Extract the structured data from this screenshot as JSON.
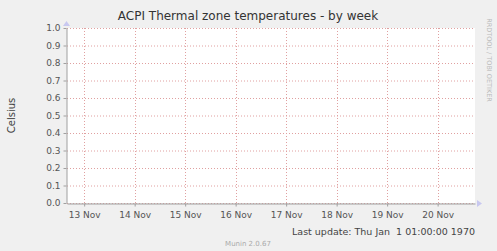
{
  "chart_data": {
    "type": "line",
    "title": "ACPI Thermal zone temperatures - by week",
    "y_label": "Celsius",
    "series": [],
    "xlim": [
      12.66,
      20.74
    ],
    "xticks": [
      {
        "value": 13,
        "label": "13 Nov"
      },
      {
        "value": 14,
        "label": "14 Nov"
      },
      {
        "value": 15,
        "label": "15 Nov"
      },
      {
        "value": 16,
        "label": "16 Nov"
      },
      {
        "value": 17,
        "label": "17 Nov"
      },
      {
        "value": 18,
        "label": "18 Nov"
      },
      {
        "value": 19,
        "label": "19 Nov"
      },
      {
        "value": 20,
        "label": "20 Nov"
      }
    ],
    "ylim": [
      0,
      1
    ],
    "yticks": [
      {
        "value": 0,
        "label": "0.0"
      },
      {
        "value": 0.1,
        "label": "0.1"
      },
      {
        "value": 0.2,
        "label": "0.2"
      },
      {
        "value": 0.3,
        "label": "0.3"
      },
      {
        "value": 0.4,
        "label": "0.4"
      },
      {
        "value": 0.5,
        "label": "0.5"
      },
      {
        "value": 0.6,
        "label": "0.6"
      },
      {
        "value": 0.7,
        "label": "0.7"
      },
      {
        "value": 0.8,
        "label": "0.8"
      },
      {
        "value": 0.9,
        "label": "0.9"
      },
      {
        "value": 1,
        "label": "1.0"
      }
    ],
    "grid": true,
    "annotations": [
      "Last update: Thu Jan  1 01:00:00 1970",
      "Munin 2.0.67",
      "RRDTOOL / TOBI OETIKER"
    ]
  }
}
